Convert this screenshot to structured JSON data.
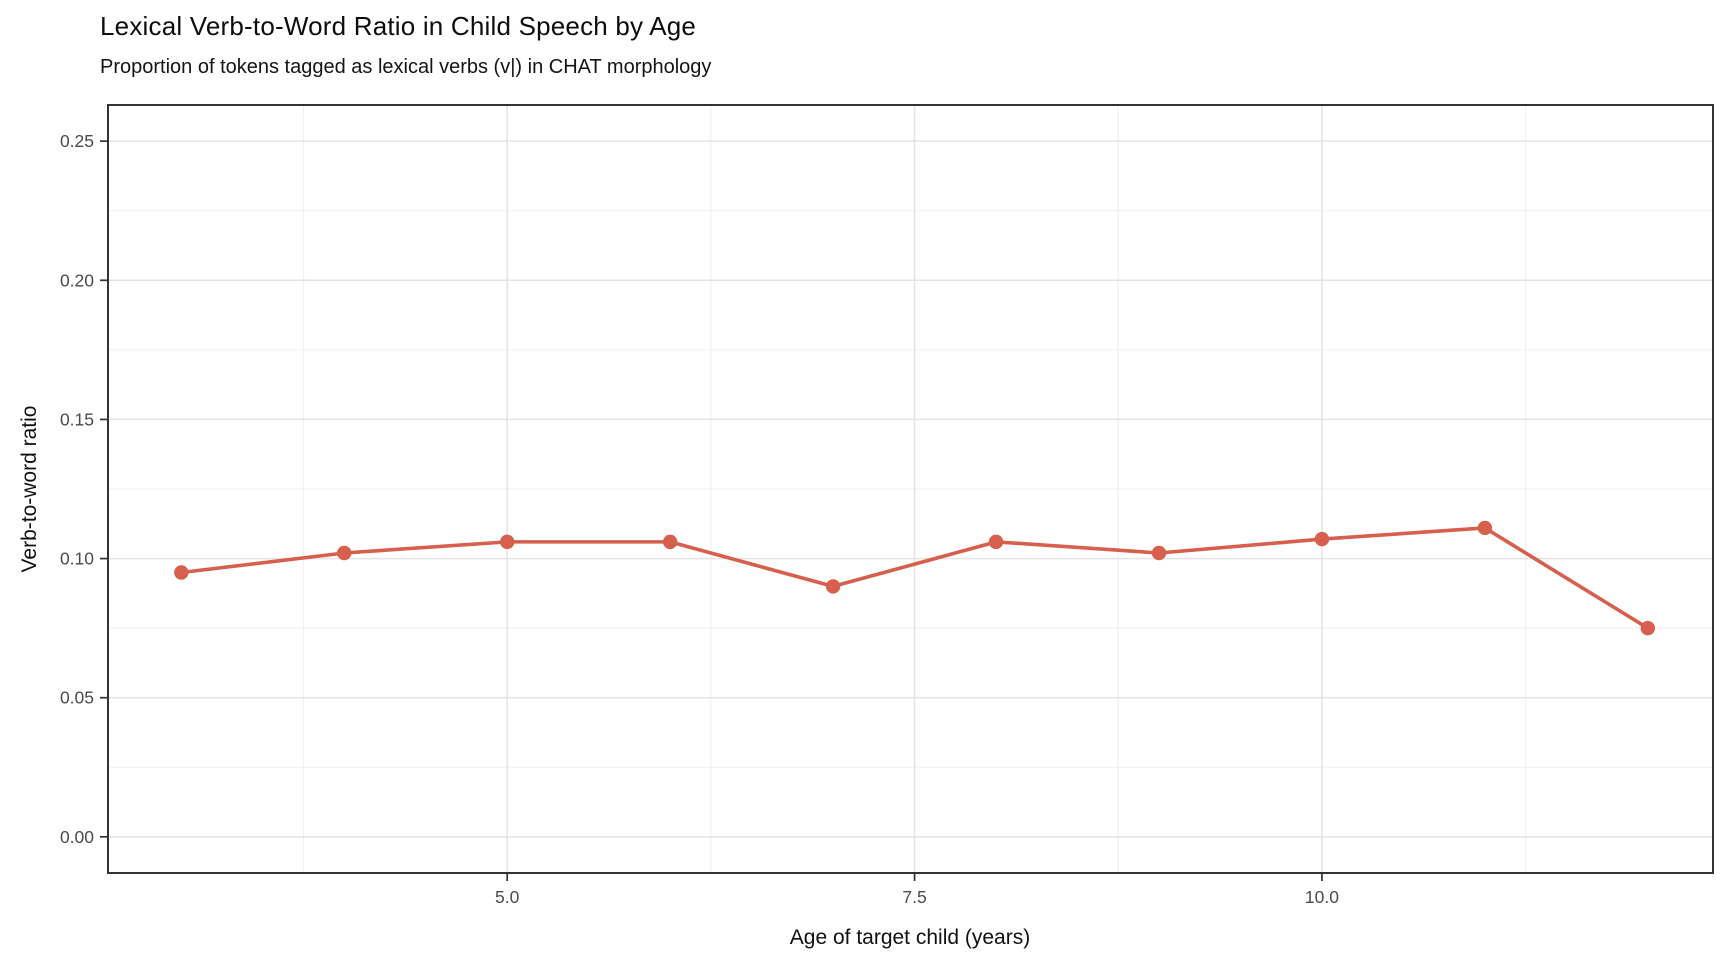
{
  "chart_data": {
    "type": "line",
    "title": "Lexical Verb-to-Word Ratio in Child Speech by Age",
    "subtitle": "Proportion of tokens tagged as lexical verbs (v|) in CHAT morphology",
    "xlabel": "Age of target child (years)",
    "ylabel": "Verb-to-word ratio",
    "x": [
      3,
      4,
      5,
      6,
      7,
      8,
      9,
      10,
      11,
      12
    ],
    "values": [
      0.095,
      0.102,
      0.106,
      0.106,
      0.09,
      0.106,
      0.102,
      0.107,
      0.111,
      0.075
    ],
    "xlim": [
      2.55,
      12.4
    ],
    "ylim": [
      -0.013,
      0.263
    ],
    "x_ticks": [
      5.0,
      7.5,
      10.0
    ],
    "x_tick_labels": [
      "5.0",
      "7.5",
      "10.0"
    ],
    "y_ticks": [
      0.0,
      0.05,
      0.1,
      0.15,
      0.2,
      0.25
    ],
    "y_tick_labels": [
      "0.00",
      "0.05",
      "0.10",
      "0.15",
      "0.20",
      "0.25"
    ],
    "x_minor_gridlines": [
      3.75,
      6.25,
      8.75,
      11.25
    ],
    "y_minor_gridlines": [
      0.025,
      0.075,
      0.125,
      0.175,
      0.225
    ],
    "grid": true,
    "legend": false,
    "line_color": "#D6604D",
    "point_color": "#D6604D",
    "grid_major_color": "#e4e4e4",
    "grid_minor_color": "#efefef",
    "panel_border_color": "#333333",
    "tick_color": "#333333"
  }
}
